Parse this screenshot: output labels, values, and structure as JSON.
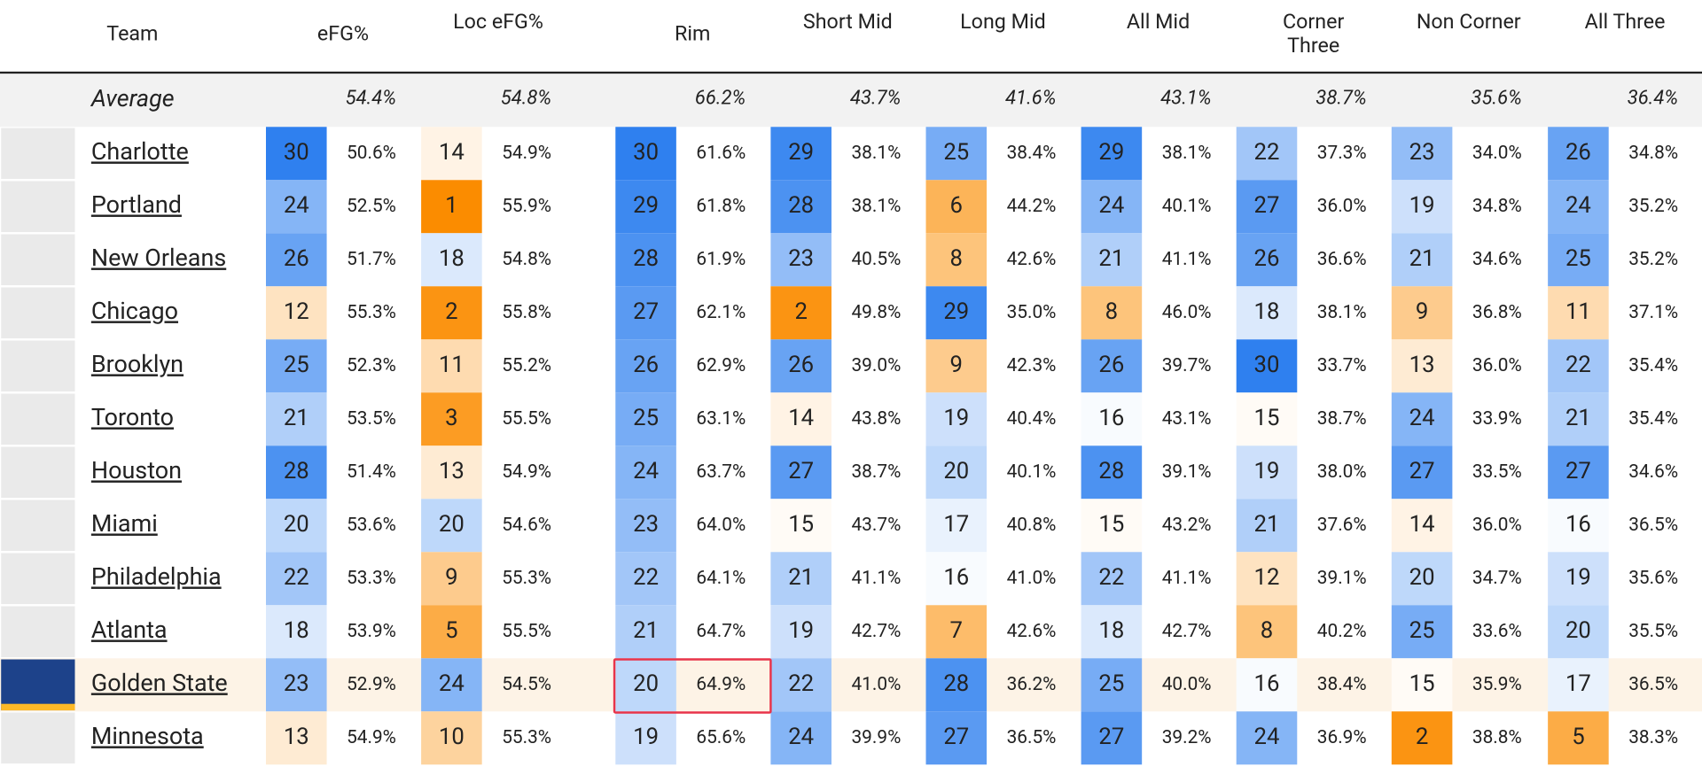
{
  "header": {
    "columns": [
      "Team",
      "eFG%",
      "Loc eFG%",
      "Rim",
      "Short Mid",
      "Long Mid",
      "All Mid",
      "Corner Three",
      "Non Corner",
      "All Three"
    ]
  },
  "average": {
    "label": "Average",
    "values": [
      "54.4%",
      "54.8%",
      "66.2%",
      "43.7%",
      "41.6%",
      "43.1%",
      "38.7%",
      "35.6%",
      "36.4%"
    ]
  },
  "rows": [
    {
      "team": "Charlotte",
      "cells": [
        [
          30,
          "50.6%"
        ],
        [
          14,
          "54.9%"
        ],
        [
          30,
          "61.6%"
        ],
        [
          29,
          "38.1%"
        ],
        [
          25,
          "38.4%"
        ],
        [
          29,
          "38.1%"
        ],
        [
          22,
          "37.3%"
        ],
        [
          23,
          "34.0%"
        ],
        [
          26,
          "34.8%"
        ]
      ]
    },
    {
      "team": "Portland",
      "cells": [
        [
          24,
          "52.5%"
        ],
        [
          1,
          "55.9%"
        ],
        [
          29,
          "61.8%"
        ],
        [
          28,
          "38.1%"
        ],
        [
          6,
          "44.2%"
        ],
        [
          24,
          "40.1%"
        ],
        [
          27,
          "36.0%"
        ],
        [
          19,
          "34.8%"
        ],
        [
          24,
          "35.2%"
        ]
      ]
    },
    {
      "team": "New Orleans",
      "cells": [
        [
          26,
          "51.7%"
        ],
        [
          18,
          "54.8%"
        ],
        [
          28,
          "61.9%"
        ],
        [
          23,
          "40.5%"
        ],
        [
          8,
          "42.6%"
        ],
        [
          21,
          "41.1%"
        ],
        [
          26,
          "36.6%"
        ],
        [
          21,
          "34.6%"
        ],
        [
          25,
          "35.2%"
        ]
      ]
    },
    {
      "team": "Chicago",
      "cells": [
        [
          12,
          "55.3%"
        ],
        [
          2,
          "55.8%"
        ],
        [
          27,
          "62.1%"
        ],
        [
          2,
          "49.8%"
        ],
        [
          29,
          "35.0%"
        ],
        [
          8,
          "46.0%"
        ],
        [
          18,
          "38.1%"
        ],
        [
          9,
          "36.8%"
        ],
        [
          11,
          "37.1%"
        ]
      ]
    },
    {
      "team": "Brooklyn",
      "cells": [
        [
          25,
          "52.3%"
        ],
        [
          11,
          "55.2%"
        ],
        [
          26,
          "62.9%"
        ],
        [
          26,
          "39.0%"
        ],
        [
          9,
          "42.3%"
        ],
        [
          26,
          "39.7%"
        ],
        [
          30,
          "33.7%"
        ],
        [
          13,
          "36.0%"
        ],
        [
          22,
          "35.4%"
        ]
      ]
    },
    {
      "team": "Toronto",
      "cells": [
        [
          21,
          "53.5%"
        ],
        [
          3,
          "55.5%"
        ],
        [
          25,
          "63.1%"
        ],
        [
          14,
          "43.8%"
        ],
        [
          19,
          "40.4%"
        ],
        [
          16,
          "43.1%"
        ],
        [
          15,
          "38.7%"
        ],
        [
          24,
          "33.9%"
        ],
        [
          21,
          "35.4%"
        ]
      ]
    },
    {
      "team": "Houston",
      "cells": [
        [
          28,
          "51.4%"
        ],
        [
          13,
          "54.9%"
        ],
        [
          24,
          "63.7%"
        ],
        [
          27,
          "38.7%"
        ],
        [
          20,
          "40.1%"
        ],
        [
          28,
          "39.1%"
        ],
        [
          19,
          "38.0%"
        ],
        [
          27,
          "33.5%"
        ],
        [
          27,
          "34.6%"
        ]
      ]
    },
    {
      "team": "Miami",
      "cells": [
        [
          20,
          "53.6%"
        ],
        [
          20,
          "54.6%"
        ],
        [
          23,
          "64.0%"
        ],
        [
          15,
          "43.7%"
        ],
        [
          17,
          "40.8%"
        ],
        [
          15,
          "43.2%"
        ],
        [
          21,
          "37.6%"
        ],
        [
          14,
          "36.0%"
        ],
        [
          16,
          "36.5%"
        ]
      ]
    },
    {
      "team": "Philadelphia",
      "cells": [
        [
          22,
          "53.3%"
        ],
        [
          9,
          "55.3%"
        ],
        [
          22,
          "64.1%"
        ],
        [
          21,
          "41.1%"
        ],
        [
          16,
          "41.0%"
        ],
        [
          22,
          "41.1%"
        ],
        [
          12,
          "39.1%"
        ],
        [
          20,
          "34.7%"
        ],
        [
          19,
          "35.6%"
        ]
      ]
    },
    {
      "team": "Atlanta",
      "cells": [
        [
          18,
          "53.9%"
        ],
        [
          5,
          "55.5%"
        ],
        [
          21,
          "64.7%"
        ],
        [
          19,
          "42.7%"
        ],
        [
          7,
          "42.6%"
        ],
        [
          18,
          "42.7%"
        ],
        [
          8,
          "40.2%"
        ],
        [
          25,
          "33.6%"
        ],
        [
          20,
          "35.5%"
        ]
      ]
    },
    {
      "team": "Golden State",
      "cells": [
        [
          23,
          "52.9%"
        ],
        [
          24,
          "54.5%"
        ],
        [
          20,
          "64.9%"
        ],
        [
          22,
          "41.0%"
        ],
        [
          28,
          "36.2%"
        ],
        [
          25,
          "40.0%"
        ],
        [
          16,
          "38.4%"
        ],
        [
          15,
          "35.9%"
        ],
        [
          17,
          "36.5%"
        ]
      ]
    },
    {
      "team": "Minnesota",
      "cells": [
        [
          13,
          "54.9%"
        ],
        [
          10,
          "55.3%"
        ],
        [
          19,
          "65.6%"
        ],
        [
          24,
          "39.9%"
        ],
        [
          27,
          "36.5%"
        ],
        [
          27,
          "39.2%"
        ],
        [
          24,
          "36.9%"
        ],
        [
          2,
          "38.8%"
        ],
        [
          5,
          "38.3%"
        ]
      ]
    }
  ]
}
